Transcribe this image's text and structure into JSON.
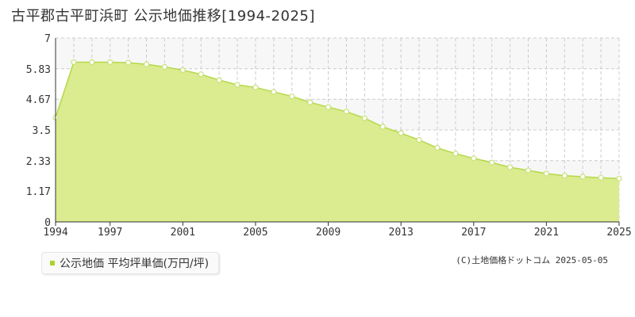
{
  "title": "古平郡古平町浜町 公示地価推移[1994-2025]",
  "legend": {
    "label": "公示地価 平均坪単価(万円/坪)",
    "color": "#a9d42c"
  },
  "copyright": "(C)土地価格ドットコム 2025-05-05",
  "colors": {
    "fill": "#dbeb8f",
    "line": "#b3d94a",
    "marker": "#c9e07a",
    "grid": "#cccccc",
    "band": "#f7f7f7"
  },
  "chart_data": {
    "type": "area",
    "x": [
      1994,
      1995,
      1996,
      1997,
      1998,
      1999,
      2000,
      2001,
      2002,
      2003,
      2004,
      2005,
      2006,
      2007,
      2008,
      2009,
      2010,
      2011,
      2012,
      2013,
      2014,
      2015,
      2016,
      2017,
      2018,
      2019,
      2020,
      2021,
      2022,
      2023,
      2024,
      2025
    ],
    "values": [
      3.97,
      6.08,
      6.08,
      6.08,
      6.06,
      6.0,
      5.9,
      5.78,
      5.62,
      5.4,
      5.22,
      5.12,
      4.95,
      4.78,
      4.55,
      4.37,
      4.2,
      3.95,
      3.62,
      3.38,
      3.12,
      2.82,
      2.6,
      2.42,
      2.26,
      2.08,
      1.96,
      1.84,
      1.76,
      1.72,
      1.68,
      1.65
    ],
    "ylim": [
      0,
      7
    ],
    "yticks": [
      "0",
      "1.17",
      "2.33",
      "3.5",
      "4.67",
      "5.83",
      "7"
    ],
    "xticks": [
      "1994",
      "1997",
      "2001",
      "2005",
      "2009",
      "2013",
      "2017",
      "2021",
      "2025"
    ],
    "grid": true,
    "legend_position": "bottom-left"
  }
}
